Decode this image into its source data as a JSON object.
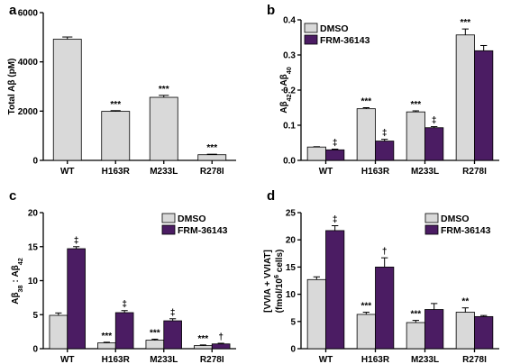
{
  "chart_data": [
    {
      "type": "bar",
      "panel": "a",
      "ylabel_parts": [
        {
          "t": "Total A",
          "sub": false
        },
        {
          "t": "β",
          "sub": false
        },
        {
          "t": " (pM)",
          "sub": false
        }
      ],
      "categories": [
        "WT",
        "H163R",
        "M233L",
        "R278I"
      ],
      "ylim": [
        0,
        6000
      ],
      "yticks": [
        0,
        2000,
        4000,
        6000
      ],
      "ytick_labels": [
        "0",
        "2000",
        "4000",
        "6000"
      ],
      "series": [
        {
          "values": [
            4920,
            1990,
            2560,
            230
          ],
          "errors": [
            90,
            30,
            80,
            20
          ],
          "annotations": [
            "",
            "***",
            "***",
            "***"
          ],
          "color": "#d9d9d9"
        }
      ],
      "legend": null
    },
    {
      "type": "bar",
      "panel": "b",
      "ylabel_parts": [
        {
          "t": "Aβ",
          "sub": false
        },
        {
          "t": "42",
          "sub": true
        },
        {
          "t": " : Aβ",
          "sub": false
        },
        {
          "t": "40",
          "sub": true
        }
      ],
      "categories": [
        "WT",
        "H163R",
        "M233L",
        "R278I"
      ],
      "ylim": [
        0,
        0.4
      ],
      "yticks": [
        0,
        0.1,
        0.2,
        0.3,
        0.4
      ],
      "ytick_labels": [
        "0.0",
        "0.1",
        "0.2",
        "0.3",
        "0.4"
      ],
      "series": [
        {
          "name": "DMSO",
          "values": [
            0.038,
            0.147,
            0.138,
            0.357
          ],
          "errors": [
            0.001,
            0.003,
            0.003,
            0.017
          ],
          "annotations": [
            "",
            "***",
            "***",
            "***"
          ],
          "color": "#d9d9d9"
        },
        {
          "name": "FRM-36143",
          "values": [
            0.03,
            0.055,
            0.093,
            0.312
          ],
          "errors": [
            0.002,
            0.005,
            0.003,
            0.015
          ],
          "annotations": [
            "‡",
            "‡",
            "‡",
            ""
          ],
          "color": "#4b1c63"
        }
      ],
      "legend": "top-left"
    },
    {
      "type": "bar",
      "panel": "c",
      "ylabel_parts": [
        {
          "t": "Aβ",
          "sub": false
        },
        {
          "t": "38",
          "sub": true
        },
        {
          "t": " : Aβ",
          "sub": false
        },
        {
          "t": "42",
          "sub": true
        }
      ],
      "categories": [
        "WT",
        "H163R",
        "M233L",
        "R278I"
      ],
      "ylim": [
        0,
        20
      ],
      "yticks": [
        0,
        5,
        10,
        15,
        20
      ],
      "ytick_labels": [
        "0",
        "5",
        "10",
        "15",
        "20"
      ],
      "series": [
        {
          "name": "DMSO",
          "values": [
            4.9,
            0.85,
            1.25,
            0.45
          ],
          "errors": [
            0.35,
            0.1,
            0.15,
            0.1
          ],
          "annotations": [
            "",
            "***",
            "***",
            "***"
          ],
          "color": "#d9d9d9"
        },
        {
          "name": "FRM-36143",
          "values": [
            14.7,
            5.3,
            4.1,
            0.7
          ],
          "errors": [
            0.3,
            0.3,
            0.3,
            0.1
          ],
          "annotations": [
            "‡",
            "‡",
            "‡",
            "†"
          ],
          "color": "#4b1c63"
        }
      ],
      "legend": "top-right"
    },
    {
      "type": "bar",
      "panel": "d",
      "ylabel_lines": [
        [
          {
            "t": "[VVIA + VVIAT]",
            "sub": false,
            "sup": false
          }
        ],
        [
          {
            "t": "(fmol/10",
            "sub": false,
            "sup": false
          },
          {
            "t": "6",
            "sub": false,
            "sup": true
          },
          {
            "t": " cells)",
            "sub": false,
            "sup": false
          }
        ]
      ],
      "categories": [
        "WT",
        "H163R",
        "M233L",
        "R278I"
      ],
      "ylim": [
        0,
        25
      ],
      "yticks": [
        0,
        5,
        10,
        15,
        20,
        25
      ],
      "ytick_labels": [
        "0",
        "5",
        "10",
        "15",
        "20",
        "25"
      ],
      "series": [
        {
          "name": "DMSO",
          "values": [
            12.7,
            6.3,
            4.8,
            6.7
          ],
          "errors": [
            0.5,
            0.4,
            0.4,
            0.8
          ],
          "annotations": [
            "",
            "***",
            "***",
            "**"
          ],
          "color": "#d9d9d9"
        },
        {
          "name": "FRM-36143",
          "values": [
            21.7,
            15.0,
            7.2,
            5.9
          ],
          "errors": [
            0.9,
            1.7,
            1.1,
            0.2
          ],
          "annotations": [
            "‡",
            "†",
            "",
            ""
          ],
          "color": "#4b1c63"
        }
      ],
      "legend": "top-right"
    }
  ]
}
